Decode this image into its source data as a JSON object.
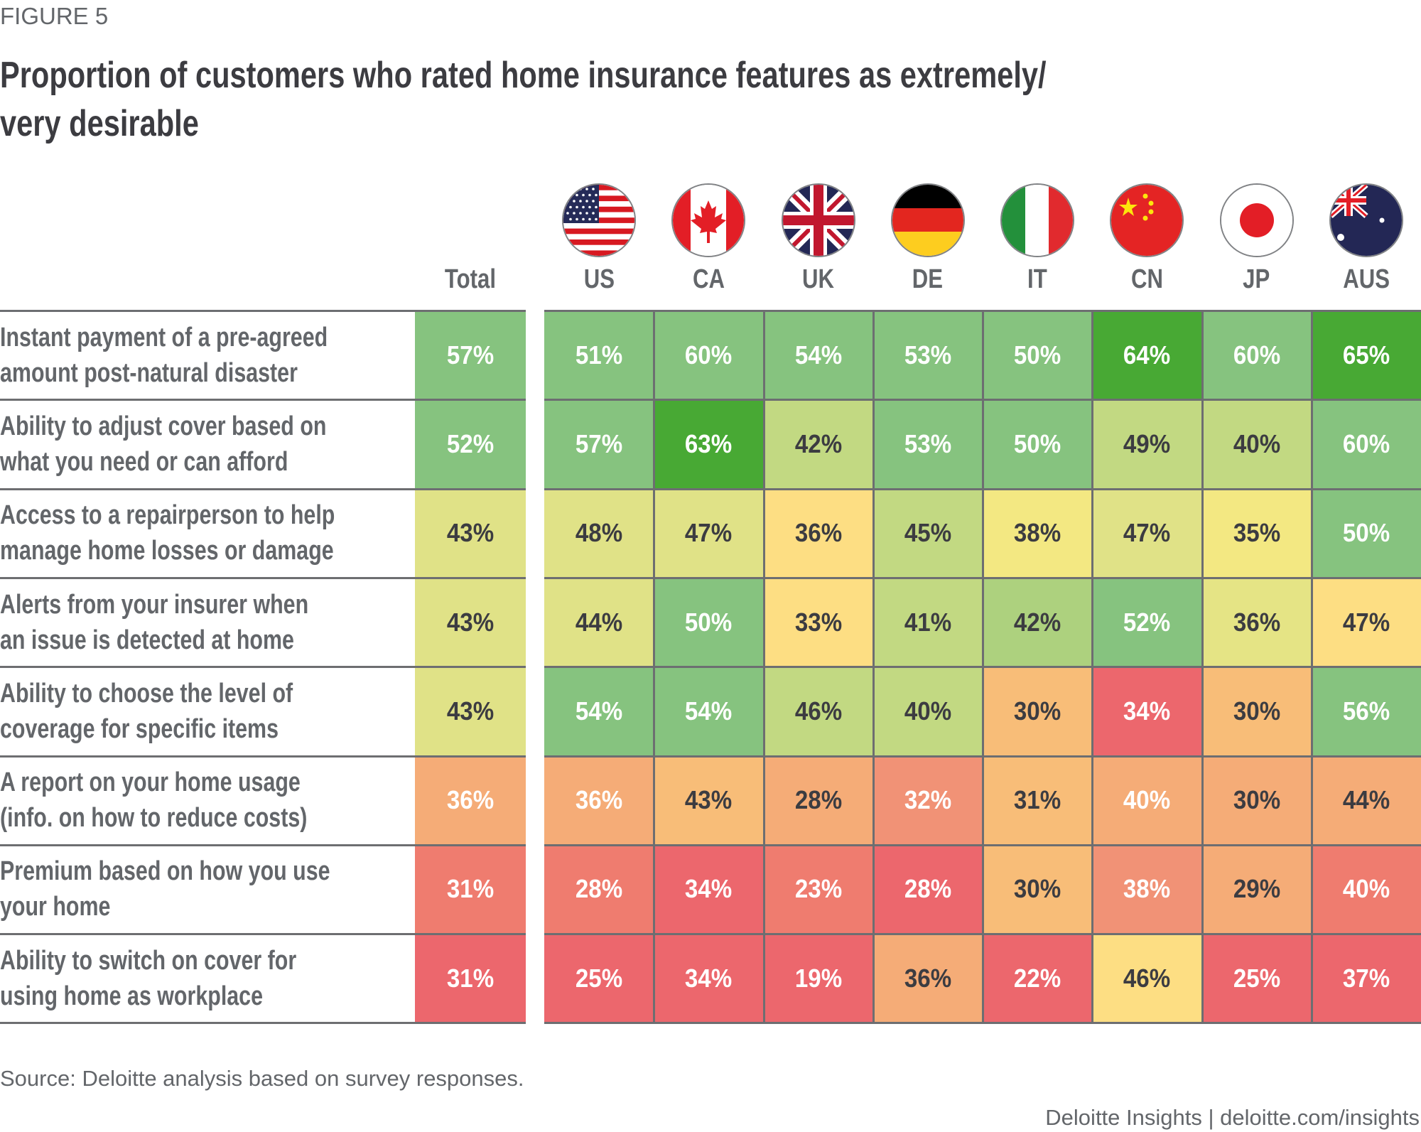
{
  "figure_label": "FIGURE 5",
  "title_line1": "Proportion of customers who rated home insurance features as extremely/",
  "title_line2": "very desirable",
  "source": "Source: Deloitte analysis based on survey responses.",
  "credit": "Deloitte Insights | deloitte.com/insights",
  "palette": {
    "g3": "#48A934",
    "g2": "#86C37F",
    "g1": "#C2D982",
    "g1b": "#ADD17E",
    "y1": "#E0E287",
    "y1b": "#E5E485",
    "y2": "#F3E882",
    "y3": "#FDDE83",
    "o1": "#F8BD78",
    "o2": "#F5AC77",
    "o3": "#F19276",
    "r1": "#EF7C6F",
    "r2": "#EC676D"
  },
  "chart_data": {
    "type": "heatmap",
    "title": "Proportion of customers who rated home insurance features as extremely/very desirable",
    "columns": [
      "Total",
      "US",
      "CA",
      "UK",
      "DE",
      "IT",
      "CN",
      "JP",
      "AUS"
    ],
    "country_flags": [
      {
        "code": "US",
        "icon": "us-flag-icon"
      },
      {
        "code": "CA",
        "icon": "canada-flag-icon"
      },
      {
        "code": "UK",
        "icon": "uk-flag-icon"
      },
      {
        "code": "DE",
        "icon": "germany-flag-icon"
      },
      {
        "code": "IT",
        "icon": "italy-flag-icon"
      },
      {
        "code": "CN",
        "icon": "china-flag-icon"
      },
      {
        "code": "JP",
        "icon": "japan-flag-icon"
      },
      {
        "code": "AUS",
        "icon": "australia-flag-icon"
      }
    ],
    "rows": [
      {
        "label_lines": [
          "Instant payment of a pre-agreed",
          "amount post-natural disaster"
        ],
        "values": [
          57,
          51,
          60,
          54,
          53,
          50,
          64,
          60,
          65
        ],
        "colors": [
          "g2",
          "g2",
          "g2",
          "g2",
          "g2",
          "g2",
          "g3",
          "g2",
          "g3"
        ],
        "text": [
          "light",
          "light",
          "light",
          "light",
          "light",
          "light",
          "light",
          "light",
          "light"
        ]
      },
      {
        "label_lines": [
          "Ability to adjust cover based on",
          "what you need or can afford"
        ],
        "values": [
          52,
          57,
          63,
          42,
          53,
          50,
          49,
          40,
          60
        ],
        "colors": [
          "g2",
          "g2",
          "g3",
          "g1",
          "g2",
          "g2",
          "g1",
          "g1",
          "g2"
        ],
        "text": [
          "light",
          "light",
          "light",
          "dark",
          "light",
          "light",
          "dark",
          "dark",
          "light"
        ]
      },
      {
        "label_lines": [
          "Access to a repairperson to help",
          "manage home losses or damage"
        ],
        "values": [
          43,
          48,
          47,
          36,
          45,
          38,
          47,
          35,
          50
        ],
        "colors": [
          "y1",
          "y1",
          "y1",
          "y3",
          "g1",
          "y2",
          "y1",
          "y2",
          "g2"
        ],
        "text": [
          "dark",
          "dark",
          "dark",
          "dark",
          "dark",
          "dark",
          "dark",
          "dark",
          "light"
        ]
      },
      {
        "label_lines": [
          "Alerts from your insurer when",
          "an issue is detected at home"
        ],
        "values": [
          43,
          44,
          50,
          33,
          41,
          42,
          52,
          36,
          47
        ],
        "colors": [
          "y1",
          "y1",
          "g2",
          "y3",
          "g1",
          "g1b",
          "g2",
          "y1b",
          "y3"
        ],
        "text": [
          "dark",
          "dark",
          "light",
          "dark",
          "dark",
          "dark",
          "light",
          "dark",
          "dark"
        ]
      },
      {
        "label_lines": [
          "Ability to choose the level of",
          "coverage for specific items"
        ],
        "values": [
          43,
          54,
          54,
          46,
          40,
          30,
          34,
          30,
          56
        ],
        "colors": [
          "y1",
          "g2",
          "g2",
          "g1",
          "g1",
          "o1",
          "r2",
          "o1",
          "g2"
        ],
        "text": [
          "dark",
          "light",
          "light",
          "dark",
          "dark",
          "dark",
          "light",
          "dark",
          "light"
        ]
      },
      {
        "label_lines": [
          "A report on your home usage",
          "(info. on how to reduce costs)"
        ],
        "values": [
          36,
          36,
          43,
          28,
          32,
          31,
          40,
          30,
          44
        ],
        "colors": [
          "o2",
          "o2",
          "o1",
          "o2",
          "o3",
          "o1",
          "o2",
          "o2",
          "o2"
        ],
        "text": [
          "light",
          "light",
          "dark",
          "dark",
          "light",
          "dark",
          "light",
          "dark",
          "dark"
        ]
      },
      {
        "label_lines": [
          "Premium based on how you use",
          "your home"
        ],
        "values": [
          31,
          28,
          34,
          23,
          28,
          30,
          38,
          29,
          40
        ],
        "colors": [
          "r1",
          "r1",
          "r2",
          "r1",
          "r2",
          "o1",
          "o3",
          "o2",
          "r1"
        ],
        "text": [
          "light",
          "light",
          "light",
          "light",
          "light",
          "dark",
          "light",
          "dark",
          "light"
        ]
      },
      {
        "label_lines": [
          "Ability to switch on cover for",
          "using home as workplace"
        ],
        "values": [
          31,
          25,
          34,
          19,
          36,
          22,
          46,
          25,
          37
        ],
        "colors": [
          "r2",
          "r2",
          "r2",
          "r2",
          "o2",
          "r2",
          "y3",
          "r2",
          "r2"
        ],
        "text": [
          "light",
          "light",
          "light",
          "light",
          "dark",
          "light",
          "dark",
          "light",
          "light"
        ]
      }
    ],
    "value_format": "{v}%"
  }
}
